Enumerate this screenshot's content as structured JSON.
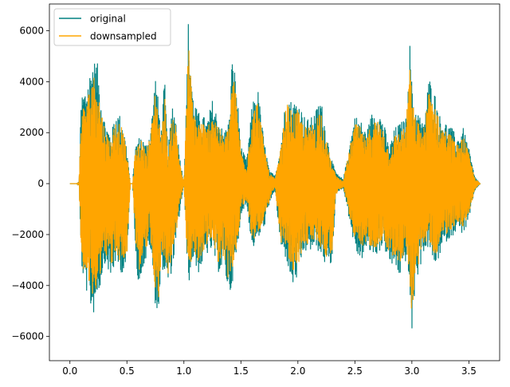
{
  "chart_data": {
    "type": "line",
    "title": "",
    "xlabel": "",
    "ylabel": "",
    "xlim": [
      -0.18,
      3.77
    ],
    "ylim": [
      -6950,
      7050
    ],
    "x_ticks": [
      0.0,
      0.5,
      1.0,
      1.5,
      2.0,
      2.5,
      3.0,
      3.5
    ],
    "x_tick_labels": [
      "0.0",
      "0.5",
      "1.0",
      "1.5",
      "2.0",
      "2.5",
      "3.0",
      "3.5"
    ],
    "y_ticks": [
      -6000,
      -4000,
      -2000,
      0,
      2000,
      4000,
      6000
    ],
    "y_tick_labels": [
      "−6000",
      "−4000",
      "−2000",
      "0",
      "2000",
      "4000",
      "6000"
    ],
    "grid": false,
    "legend": {
      "position": "top-left",
      "entries": [
        "original",
        "downsampled"
      ]
    },
    "series": [
      {
        "name": "original",
        "color": "#008080",
        "envelope": {
          "x": [
            0.0,
            0.06,
            0.08,
            0.1,
            0.13,
            0.16,
            0.2,
            0.24,
            0.26,
            0.3,
            0.33,
            0.36,
            0.4,
            0.44,
            0.47,
            0.5,
            0.53,
            0.55,
            0.57,
            0.6,
            0.63,
            0.66,
            0.7,
            0.72,
            0.75,
            0.78,
            0.8,
            0.83,
            0.86,
            0.9,
            0.93,
            0.96,
            1.0,
            1.02,
            1.04,
            1.05,
            1.08,
            1.12,
            1.16,
            1.2,
            1.25,
            1.3,
            1.35,
            1.4,
            1.42,
            1.45,
            1.48,
            1.5,
            1.55,
            1.6,
            1.65,
            1.7,
            1.75,
            1.78,
            1.8,
            1.85,
            1.9,
            1.95,
            2.0,
            2.05,
            2.1,
            2.15,
            2.2,
            2.25,
            2.3,
            2.33,
            2.36,
            2.4,
            2.45,
            2.5,
            2.55,
            2.6,
            2.65,
            2.7,
            2.75,
            2.8,
            2.85,
            2.9,
            2.95,
            2.98,
            3.0,
            3.03,
            3.06,
            3.1,
            3.15,
            3.2,
            3.25,
            3.3,
            3.35,
            3.4,
            3.45,
            3.5,
            3.55,
            3.6
          ],
          "upper": [
            0,
            0,
            80,
            3500,
            3700,
            4100,
            4850,
            4800,
            3900,
            2600,
            2200,
            1900,
            2800,
            2700,
            2200,
            1400,
            0,
            0,
            1400,
            1800,
            1900,
            1500,
            2000,
            2700,
            4300,
            3100,
            2000,
            4200,
            1300,
            3200,
            2600,
            1200,
            0,
            3000,
            6600,
            5600,
            3500,
            2800,
            2800,
            2400,
            3300,
            2600,
            2000,
            2600,
            4900,
            4400,
            2800,
            1500,
            900,
            3200,
            3700,
            1800,
            500,
            400,
            300,
            1600,
            3600,
            3200,
            3300,
            2700,
            2500,
            2800,
            3400,
            2000,
            900,
            500,
            300,
            200,
            1500,
            2700,
            2500,
            2000,
            2800,
            2900,
            2500,
            1400,
            2200,
            2400,
            2600,
            5800,
            3900,
            3000,
            2800,
            2300,
            4200,
            3600,
            2600,
            2400,
            2200,
            1800,
            2200,
            1400,
            300,
            0
          ],
          "lower": [
            0,
            0,
            -100,
            -3200,
            -4100,
            -4400,
            -5300,
            -4400,
            -4200,
            -3100,
            -3300,
            -3900,
            -3100,
            -3500,
            -3500,
            -3300,
            0,
            0,
            -2000,
            -4300,
            -3400,
            -3200,
            -2400,
            -3200,
            -4800,
            -5200,
            -3300,
            -3500,
            -4100,
            -3300,
            -2400,
            -1300,
            0,
            -2400,
            -3700,
            -3900,
            -2900,
            -3600,
            -3200,
            -2800,
            -2600,
            -3500,
            -3300,
            -4500,
            -4000,
            -3300,
            -2300,
            -1200,
            -800,
            -2600,
            -2200,
            -1800,
            -900,
            -400,
            -300,
            -2600,
            -3000,
            -4100,
            -3700,
            -2700,
            -2700,
            -2500,
            -2800,
            -3300,
            -3200,
            -600,
            -300,
            -200,
            -1400,
            -2600,
            -3100,
            -2600,
            -2800,
            -2800,
            -2400,
            -3200,
            -3300,
            -3700,
            -3000,
            -4000,
            -6300,
            -3800,
            -3600,
            -2700,
            -2500,
            -3300,
            -2800,
            -2300,
            -2100,
            -1800,
            -2000,
            -1500,
            -300,
            0
          ]
        }
      },
      {
        "name": "downsampled",
        "color": "#ffa500",
        "envelope": {
          "x": [
            0.0,
            0.06,
            0.08,
            0.1,
            0.13,
            0.16,
            0.2,
            0.24,
            0.26,
            0.3,
            0.33,
            0.36,
            0.4,
            0.44,
            0.47,
            0.5,
            0.53,
            0.55,
            0.57,
            0.6,
            0.63,
            0.66,
            0.7,
            0.72,
            0.75,
            0.78,
            0.8,
            0.83,
            0.86,
            0.9,
            0.93,
            0.96,
            1.0,
            1.02,
            1.04,
            1.05,
            1.08,
            1.12,
            1.16,
            1.2,
            1.25,
            1.3,
            1.35,
            1.4,
            1.42,
            1.45,
            1.48,
            1.5,
            1.55,
            1.6,
            1.65,
            1.7,
            1.75,
            1.78,
            1.8,
            1.85,
            1.9,
            1.95,
            2.0,
            2.05,
            2.1,
            2.15,
            2.2,
            2.25,
            2.3,
            2.33,
            2.36,
            2.4,
            2.45,
            2.5,
            2.55,
            2.6,
            2.65,
            2.7,
            2.75,
            2.8,
            2.85,
            2.9,
            2.95,
            2.98,
            3.0,
            3.03,
            3.06,
            3.1,
            3.15,
            3.2,
            3.25,
            3.3,
            3.35,
            3.4,
            3.45,
            3.5,
            3.55,
            3.6
          ],
          "upper": [
            0,
            0,
            60,
            2900,
            3100,
            3500,
            4300,
            4100,
            3300,
            2300,
            1900,
            1700,
            2500,
            2400,
            2000,
            1200,
            0,
            0,
            1200,
            1600,
            1700,
            1300,
            1800,
            2400,
            3800,
            2700,
            1800,
            3700,
            1100,
            2800,
            2300,
            1000,
            0,
            2600,
            5800,
            4900,
            3000,
            2400,
            2500,
            2100,
            2900,
            2300,
            1800,
            2300,
            4300,
            3900,
            2400,
            1300,
            700,
            2800,
            3300,
            1600,
            400,
            300,
            200,
            1400,
            3200,
            2800,
            2900,
            2300,
            2200,
            2500,
            3000,
            1700,
            700,
            400,
            200,
            150,
            1300,
            2400,
            2200,
            1700,
            2500,
            2500,
            2200,
            1200,
            1900,
            2100,
            2300,
            5000,
            3400,
            2600,
            2400,
            2000,
            3700,
            3200,
            2300,
            2100,
            1900,
            1500,
            1900,
            1200,
            250,
            0
          ],
          "lower": [
            0,
            0,
            -80,
            -2800,
            -3600,
            -3900,
            -4700,
            -3900,
            -3700,
            -2700,
            -2900,
            -3400,
            -2700,
            -3100,
            -3100,
            -2900,
            0,
            0,
            -1800,
            -3800,
            -3000,
            -2800,
            -2100,
            -2800,
            -4200,
            -4500,
            -2900,
            -3100,
            -3600,
            -2900,
            -2100,
            -1100,
            0,
            -2100,
            -3300,
            -3500,
            -2600,
            -3200,
            -2800,
            -2400,
            -2300,
            -3100,
            -2900,
            -4000,
            -3500,
            -2900,
            -2000,
            -1000,
            -700,
            -2300,
            -1900,
            -1600,
            -800,
            -300,
            -200,
            -2300,
            -2600,
            -3600,
            -3300,
            -2400,
            -2400,
            -2200,
            -2500,
            -2900,
            -2800,
            -500,
            -250,
            -150,
            -1200,
            -2300,
            -2700,
            -2300,
            -2500,
            -2500,
            -2100,
            -2800,
            -2900,
            -3200,
            -2600,
            -3500,
            -5600,
            -3300,
            -3200,
            -2400,
            -2200,
            -2900,
            -2400,
            -2000,
            -1800,
            -1500,
            -1700,
            -1300,
            -250,
            0
          ]
        }
      }
    ]
  }
}
